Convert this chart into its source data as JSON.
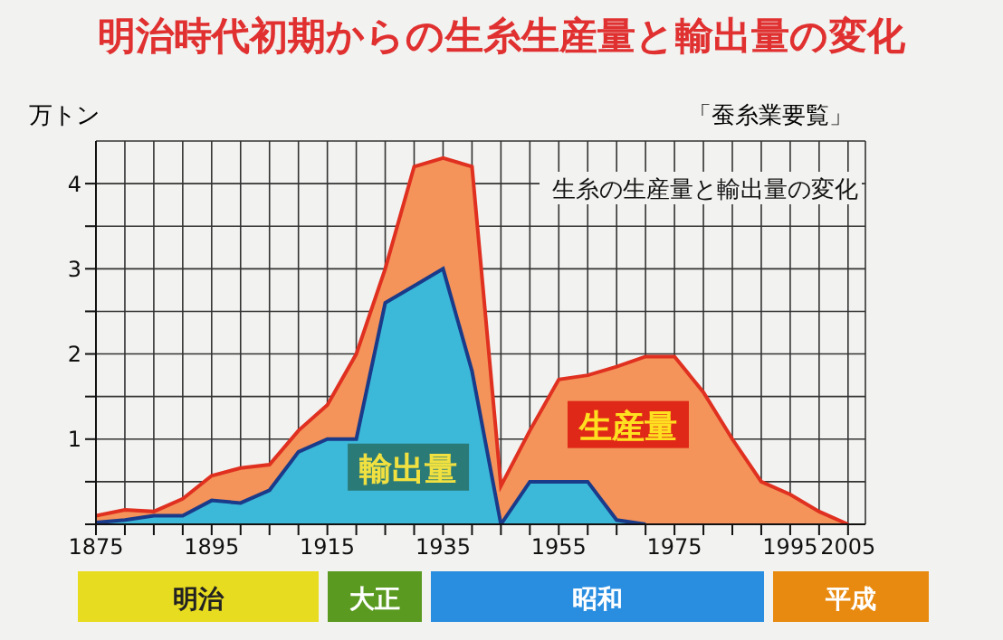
{
  "chart_data": {
    "type": "area",
    "title": "明治時代初期からの生糸生産量と輸出量の変化",
    "ylabel": "万トン",
    "annotations": [
      "「蚕糸業要覧」",
      "生糸の生産量と輸出量の変化",
      "明治",
      "大正",
      "昭和",
      "平成"
    ],
    "x": [
      1875,
      1880,
      1885,
      1890,
      1895,
      1900,
      1905,
      1910,
      1915,
      1920,
      1925,
      1930,
      1935,
      1940,
      1945,
      1950,
      1955,
      1960,
      1965,
      1970,
      1975,
      1980,
      1985,
      1990,
      1995,
      2000,
      2005
    ],
    "series": [
      {
        "name": "生産量",
        "color": "#f4935a",
        "values": [
          0.1,
          0.17,
          0.15,
          0.3,
          0.57,
          0.66,
          0.7,
          1.1,
          1.4,
          2.0,
          3.0,
          4.2,
          4.3,
          4.2,
          0.45,
          1.1,
          1.7,
          1.75,
          1.85,
          1.97,
          1.97,
          1.55,
          1.0,
          0.5,
          0.35,
          0.15,
          0.0
        ]
      },
      {
        "name": "輸出量",
        "color": "#3cb8d8",
        "values": [
          0.02,
          0.05,
          0.1,
          0.1,
          0.28,
          0.25,
          0.4,
          0.85,
          1.0,
          1.0,
          2.6,
          2.8,
          3.0,
          1.8,
          0.0,
          0.5,
          0.5,
          0.5,
          0.05,
          0.0,
          null,
          null,
          null,
          null,
          null,
          null,
          null
        ]
      }
    ],
    "xlim": [
      1875,
      2008
    ],
    "xticks": [
      1875,
      {
        "value": 1880,
        "label": null
      },
      {
        "value": 1885,
        "label": null
      },
      {
        "value": 1890,
        "label": null
      },
      1895,
      {
        "value": 1900,
        "label": null
      },
      {
        "value": 1905,
        "label": null
      },
      {
        "value": 1910,
        "label": null
      },
      1915,
      {
        "value": 1920,
        "label": null
      },
      {
        "value": 1925,
        "label": null
      },
      {
        "value": 1930,
        "label": null
      },
      1935,
      {
        "value": 1940,
        "label": null
      },
      {
        "value": 1945,
        "label": null
      },
      {
        "value": 1950,
        "label": null
      },
      1955,
      {
        "value": 1960,
        "label": null
      },
      {
        "value": 1965,
        "label": null
      },
      {
        "value": 1970,
        "label": null
      },
      1975,
      {
        "value": 1980,
        "label": null
      },
      {
        "value": 1985,
        "label": null
      },
      {
        "value": 1990,
        "label": null
      },
      1995,
      {
        "value": 2000,
        "label": null
      },
      2005
    ],
    "ylim": [
      0,
      4.5
    ],
    "yticks": [
      {
        "value": 0,
        "label": null
      },
      {
        "value": 0.5,
        "label": null
      },
      1,
      {
        "value": 1.5,
        "label": null
      },
      2,
      {
        "value": 2.5,
        "label": null
      },
      3,
      {
        "value": 3.5,
        "label": null
      },
      4
    ],
    "grid": true
  }
}
